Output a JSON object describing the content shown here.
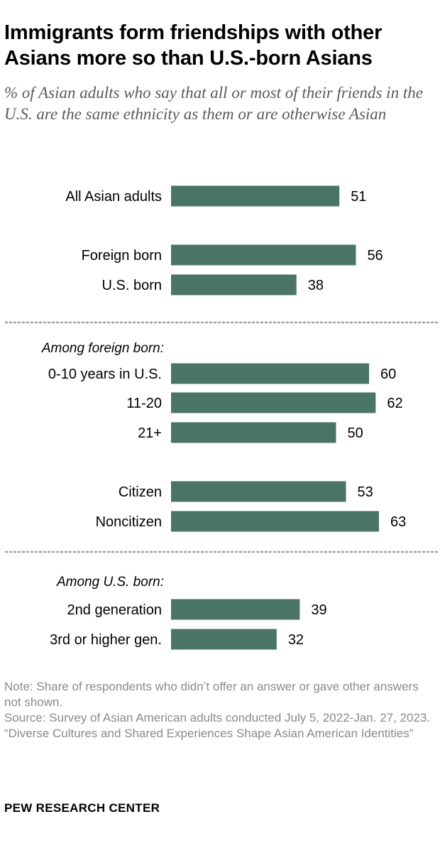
{
  "title": "Immigrants form friendships with other Asians more so than U.S.-born Asians",
  "subtitle": "% of Asian adults who say that all or most of their friends in the U.S. are the same ethnicity as them or are otherwise Asian",
  "colors": {
    "bar": "#4a7566",
    "divider": "#a0a0a0"
  },
  "chart_data": {
    "type": "bar",
    "orientation": "horizontal",
    "groups": [
      {
        "header": "",
        "categories": [
          "All Asian adults"
        ],
        "values": [
          51
        ]
      },
      {
        "header": "",
        "categories": [
          "Foreign born",
          "U.S. born"
        ],
        "values": [
          56,
          38
        ]
      },
      {
        "header": "Among foreign born:",
        "categories": [
          "0-10 years in U.S.",
          "11-20",
          "21+"
        ],
        "values": [
          60,
          62,
          50
        ]
      },
      {
        "header": "",
        "categories": [
          "Citizen",
          "Noncitizen"
        ],
        "values": [
          53,
          63
        ]
      },
      {
        "header": "Among U.S. born:",
        "categories": [
          "2nd generation",
          "3rd or higher gen."
        ],
        "values": [
          39,
          32
        ]
      }
    ],
    "xlim": [
      0,
      63
    ],
    "grid": false,
    "data_labels": true
  },
  "notes": {
    "note": "Note: Share of respondents who didn’t offer an answer or gave other answers not shown.",
    "source": "Source: Survey of Asian American adults conducted July 5, 2022-Jan. 27, 2023.",
    "report": "“Diverse Cultures and Shared Experiences Shape Asian American Identities”",
    "org": "PEW RESEARCH CENTER"
  }
}
